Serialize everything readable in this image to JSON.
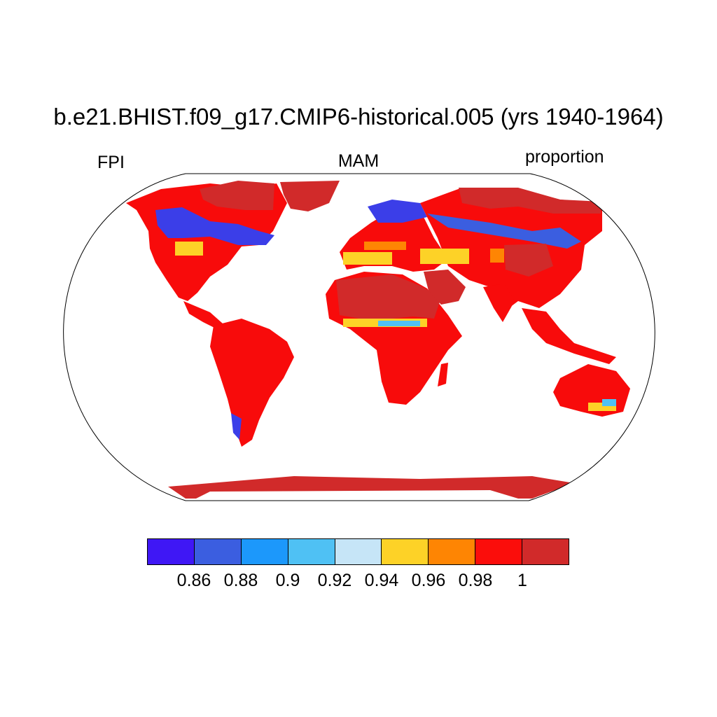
{
  "title": "b.e21.BHIST.f09_g17.CMIP6-historical.005 (yrs 1940-1964)",
  "labels": {
    "left": "FPI",
    "center": "MAM",
    "right": "proportion"
  },
  "colorbar": {
    "colors": [
      "#3f17f5",
      "#3b5ee0",
      "#1c98fb",
      "#4fc1f4",
      "#c6e5f7",
      "#fdd227",
      "#fe8503",
      "#fb0d0b",
      "#d12a2a"
    ],
    "tick_labels": [
      "0.86",
      "0.88",
      "0.9",
      "0.92",
      "0.94",
      "0.96",
      "0.98",
      "1"
    ]
  }
}
